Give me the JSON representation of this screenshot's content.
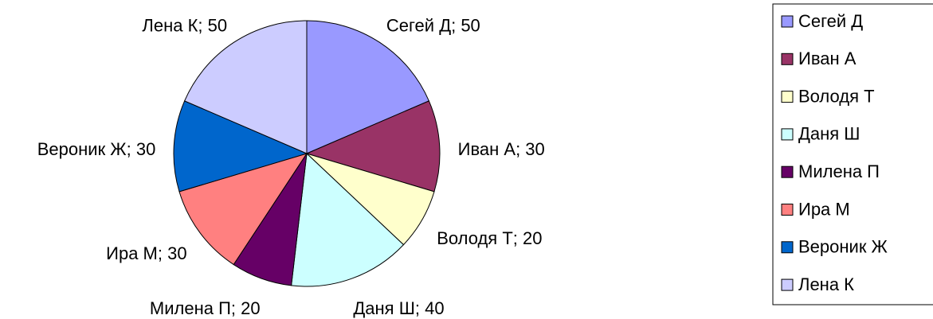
{
  "chart_data": {
    "type": "pie",
    "categories": [
      "Сегей Д",
      "Иван А",
      "Володя Т",
      "Даня Ш",
      "Милена П",
      "Ира М",
      "Вероник Ж",
      "Лена К"
    ],
    "values": [
      50,
      30,
      20,
      40,
      20,
      30,
      30,
      50
    ],
    "value_labels": [
      "Сегей Д; 50",
      "Иван А; 30",
      "Володя Т; 20",
      "Даня Ш; 40",
      "Милена П; 20",
      "Ира М; 30",
      "Вероник Ж; 30",
      "Лена К; 50"
    ],
    "colors": [
      "#9999ff",
      "#993366",
      "#ffffcc",
      "#ccffff",
      "#660066",
      "#ff8080",
      "#0066cc",
      "#ccccff"
    ],
    "legend": "right"
  }
}
